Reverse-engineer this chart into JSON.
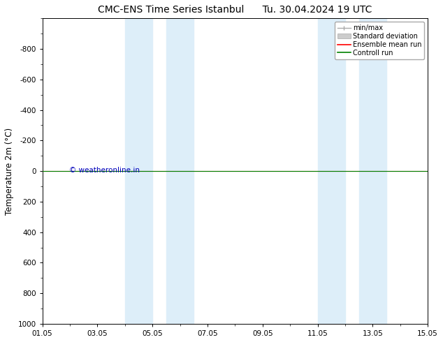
{
  "title": "CMC-ENS Time Series Istanbul      Tu. 30.04.2024 19 UTC",
  "ylabel": "Temperature 2m (°C)",
  "xlim_dates": [
    "01.05",
    "03.05",
    "05.05",
    "07.05",
    "09.05",
    "11.05",
    "13.05",
    "15.05"
  ],
  "xlim_num": [
    0,
    14
  ],
  "ylim_bottom": -1000,
  "ylim_top": 1000,
  "yticks": [
    -800,
    -600,
    -400,
    -200,
    0,
    200,
    400,
    600,
    800,
    1000
  ],
  "background_color": "#ffffff",
  "shaded_regions": [
    [
      3.5,
      4.5
    ],
    [
      5.0,
      5.5
    ],
    [
      10.5,
      11.5
    ],
    [
      12.0,
      12.5
    ]
  ],
  "shaded_color": "#ddeef9",
  "ensemble_mean_color": "#ff0000",
  "control_run_color": "#008000",
  "minmax_color": "#aaaaaa",
  "stddev_color": "#cccccc",
  "watermark": "© weatheronline.in",
  "watermark_color": "#0000bb",
  "legend_entries": [
    "min/max",
    "Standard deviation",
    "Ensemble mean run",
    "Controll run"
  ],
  "title_fontsize": 10,
  "tick_fontsize": 7.5,
  "label_fontsize": 8.5
}
